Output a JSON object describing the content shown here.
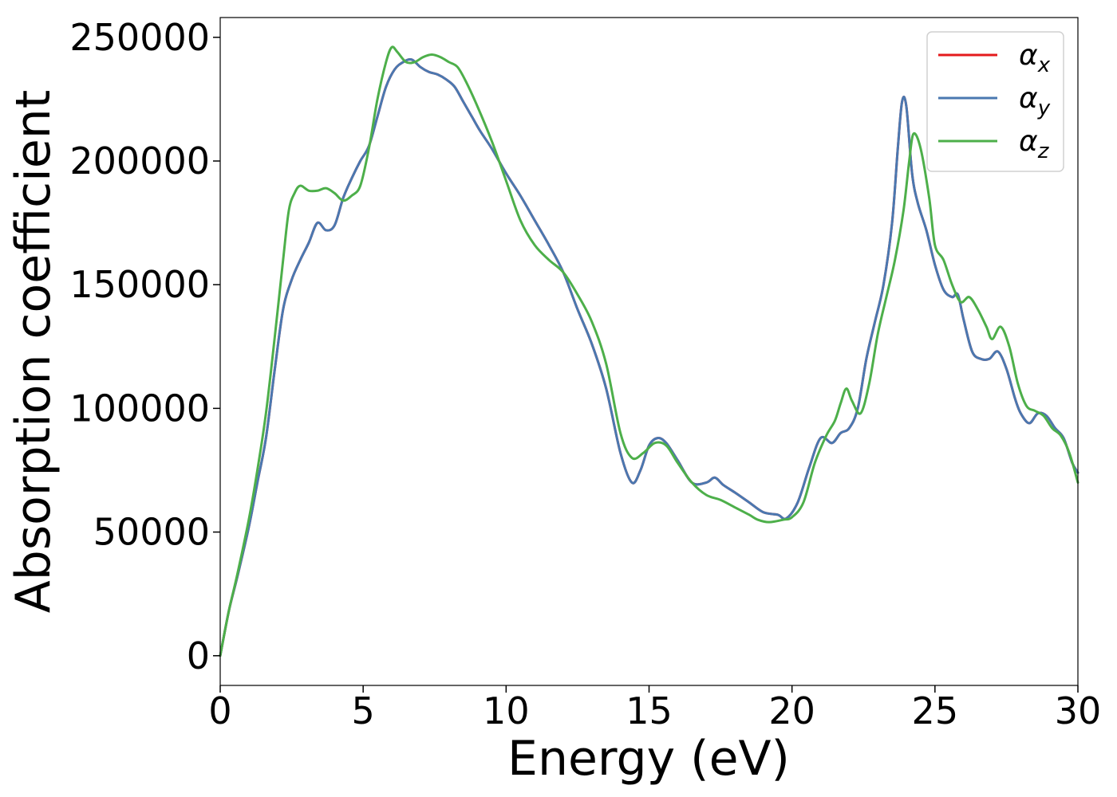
{
  "chart_data": {
    "type": "line",
    "title": "",
    "xlabel": "Energy (eV)",
    "ylabel": "Absorption coefficient",
    "xlim": [
      0,
      30
    ],
    "ylim": [
      -12000,
      258000
    ],
    "xticks": [
      0,
      5,
      10,
      15,
      20,
      25,
      30
    ],
    "yticks": [
      0,
      50000,
      100000,
      150000,
      200000,
      250000
    ],
    "grid": false,
    "legend_position": "top-right",
    "legend": [
      {
        "base": "α",
        "sub": "x",
        "color": "#e41a1c"
      },
      {
        "base": "α",
        "sub": "y",
        "color": "#4a78b0"
      },
      {
        "base": "α",
        "sub": "z",
        "color": "#4daf4a"
      }
    ],
    "series": [
      {
        "color": "#e41a1c",
        "x": [
          0,
          0.3,
          0.6,
          1.0,
          1.3,
          1.6,
          1.9,
          2.2,
          2.5,
          2.8,
          3.1,
          3.4,
          3.7,
          4.0,
          4.3,
          4.6,
          4.9,
          5.2,
          5.5,
          5.8,
          6.1,
          6.4,
          6.7,
          7.0,
          7.3,
          7.6,
          7.9,
          8.2,
          8.5,
          8.8,
          9.1,
          9.5,
          10.0,
          10.5,
          11.0,
          11.5,
          12.0,
          12.5,
          13.0,
          13.5,
          14.0,
          14.4,
          14.7,
          15.0,
          15.3,
          15.6,
          16.0,
          16.5,
          17.0,
          17.3,
          17.6,
          18.0,
          18.5,
          19.0,
          19.5,
          19.8,
          20.2,
          20.6,
          21.0,
          21.4,
          21.7,
          22.0,
          22.3,
          22.6,
          22.9,
          23.2,
          23.5,
          23.7,
          23.85,
          24.0,
          24.2,
          24.4,
          24.7,
          25.0,
          25.3,
          25.6,
          25.8,
          26.0,
          26.3,
          26.6,
          26.9,
          27.2,
          27.5,
          27.8,
          28.0,
          28.3,
          28.6,
          28.9,
          29.2,
          29.5,
          29.8,
          30.0
        ],
        "y": [
          0,
          18000,
          32000,
          52000,
          70000,
          88000,
          115000,
          140000,
          152000,
          160000,
          167000,
          175000,
          172000,
          174000,
          185000,
          193000,
          200000,
          206000,
          218000,
          230000,
          237000,
          240000,
          241000,
          238000,
          236000,
          235000,
          233000,
          230000,
          224000,
          218000,
          212000,
          205000,
          195000,
          186000,
          176000,
          166000,
          155000,
          140000,
          126000,
          108000,
          82000,
          70000,
          75000,
          85000,
          88000,
          86000,
          79000,
          70000,
          70000,
          72000,
          69000,
          66000,
          62000,
          58000,
          57000,
          55500,
          62000,
          76000,
          88000,
          86000,
          90000,
          92000,
          100000,
          120000,
          135000,
          150000,
          175000,
          205000,
          224000,
          222000,
          195000,
          183000,
          172000,
          158000,
          148000,
          145000,
          146000,
          136000,
          123000,
          120000,
          120000,
          123000,
          116000,
          104000,
          98000,
          94000,
          98000,
          97000,
          92000,
          88000,
          78000,
          74000
        ]
      },
      {
        "color": "#4a78b0",
        "x": [
          0,
          0.3,
          0.6,
          1.0,
          1.3,
          1.6,
          1.9,
          2.2,
          2.5,
          2.8,
          3.1,
          3.4,
          3.7,
          4.0,
          4.3,
          4.6,
          4.9,
          5.2,
          5.5,
          5.8,
          6.1,
          6.4,
          6.7,
          7.0,
          7.3,
          7.6,
          7.9,
          8.2,
          8.5,
          8.8,
          9.1,
          9.5,
          10.0,
          10.5,
          11.0,
          11.5,
          12.0,
          12.5,
          13.0,
          13.5,
          14.0,
          14.4,
          14.7,
          15.0,
          15.3,
          15.6,
          16.0,
          16.5,
          17.0,
          17.3,
          17.6,
          18.0,
          18.5,
          19.0,
          19.5,
          19.8,
          20.2,
          20.6,
          21.0,
          21.4,
          21.7,
          22.0,
          22.3,
          22.6,
          22.9,
          23.2,
          23.5,
          23.7,
          23.85,
          24.0,
          24.2,
          24.4,
          24.7,
          25.0,
          25.3,
          25.6,
          25.8,
          26.0,
          26.3,
          26.6,
          26.9,
          27.2,
          27.5,
          27.8,
          28.0,
          28.3,
          28.6,
          28.9,
          29.2,
          29.5,
          29.8,
          30.0
        ],
        "y": [
          0,
          18000,
          32000,
          52000,
          70000,
          88000,
          115000,
          140000,
          152000,
          160000,
          167000,
          175000,
          172000,
          174000,
          185000,
          193000,
          200000,
          206000,
          218000,
          230000,
          237000,
          240000,
          241000,
          238000,
          236000,
          235000,
          233000,
          230000,
          224000,
          218000,
          212000,
          205000,
          195000,
          186000,
          176000,
          166000,
          155000,
          140000,
          126000,
          108000,
          82000,
          70000,
          75000,
          85000,
          88000,
          86000,
          79000,
          70000,
          70000,
          72000,
          69000,
          66000,
          62000,
          58000,
          57000,
          55500,
          62000,
          76000,
          88000,
          86000,
          90000,
          92000,
          100000,
          120000,
          135000,
          150000,
          175000,
          205000,
          224000,
          222000,
          195000,
          183000,
          172000,
          158000,
          148000,
          145000,
          146000,
          136000,
          123000,
          120000,
          120000,
          123000,
          116000,
          104000,
          98000,
          94000,
          98000,
          97000,
          92000,
          88000,
          78000,
          74000
        ]
      },
      {
        "color": "#4daf4a",
        "x": [
          0,
          0.3,
          0.6,
          1.0,
          1.3,
          1.6,
          1.9,
          2.2,
          2.4,
          2.6,
          2.8,
          3.1,
          3.4,
          3.7,
          4.0,
          4.3,
          4.6,
          4.9,
          5.2,
          5.5,
          5.8,
          6.0,
          6.2,
          6.5,
          6.8,
          7.1,
          7.4,
          7.7,
          8.0,
          8.3,
          8.6,
          9.0,
          9.5,
          10.0,
          10.5,
          11.0,
          11.5,
          12.0,
          12.5,
          13.0,
          13.5,
          14.0,
          14.4,
          14.8,
          15.2,
          15.6,
          16.0,
          16.5,
          17.0,
          17.5,
          18.0,
          18.5,
          18.8,
          19.2,
          19.7,
          20.0,
          20.4,
          20.8,
          21.2,
          21.5,
          21.7,
          21.9,
          22.1,
          22.4,
          22.7,
          23.0,
          23.3,
          23.6,
          23.9,
          24.1,
          24.25,
          24.5,
          24.8,
          25.0,
          25.3,
          25.6,
          25.9,
          26.2,
          26.5,
          26.8,
          27.0,
          27.3,
          27.6,
          27.9,
          28.2,
          28.5,
          28.8,
          29.1,
          29.4,
          29.7,
          30.0
        ],
        "y": [
          0,
          18000,
          33000,
          55000,
          75000,
          98000,
          128000,
          160000,
          180000,
          187000,
          190000,
          188000,
          188000,
          189000,
          187000,
          184000,
          186000,
          190000,
          205000,
          225000,
          240000,
          246000,
          244000,
          240000,
          240000,
          242000,
          243000,
          242000,
          240000,
          238000,
          232000,
          222000,
          208000,
          192000,
          176000,
          166000,
          160000,
          155000,
          146000,
          135000,
          118000,
          90000,
          80000,
          82000,
          86000,
          85000,
          78000,
          70000,
          65000,
          63000,
          60000,
          57000,
          55000,
          54000,
          55000,
          56000,
          62000,
          78000,
          89000,
          95000,
          102000,
          108000,
          103000,
          98000,
          110000,
          130000,
          145000,
          160000,
          180000,
          200000,
          211000,
          205000,
          185000,
          166000,
          160000,
          150000,
          143000,
          145000,
          140000,
          133000,
          128000,
          133000,
          125000,
          110000,
          101000,
          99000,
          97000,
          92000,
          89000,
          82000,
          70000
        ]
      }
    ]
  }
}
